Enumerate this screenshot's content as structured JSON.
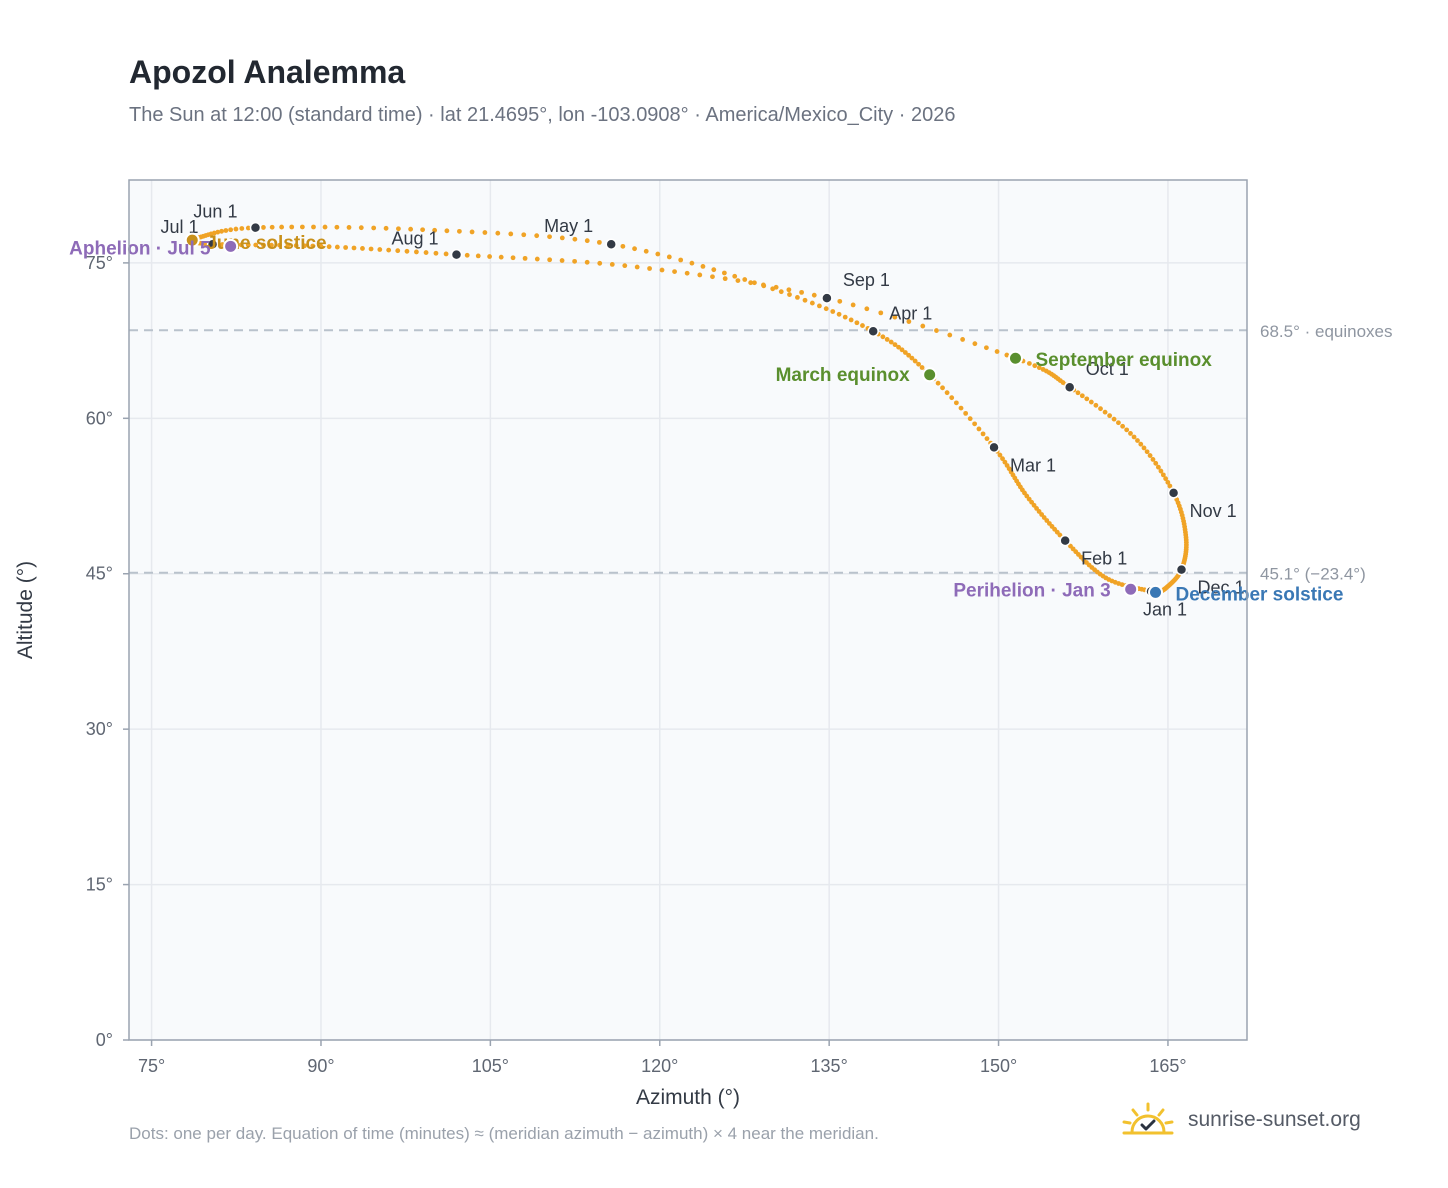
{
  "title": "Apozol Analemma",
  "subtitle": "The Sun at 12:00 (standard time) · lat 21.4695°, lon -103.0908° · America/Mexico_City · 2026",
  "footnote": "Dots: one per day. Equation of time (minutes) ≈ (meridian azimuth − azimuth) × 4 near the meridian.",
  "brand": {
    "name": "sunrise-sunset.org",
    "icon": "sun-check-icon"
  },
  "colors": {
    "curve": "#f0a326",
    "month_marker": "#333a45",
    "equinox": "#5a8f2e",
    "december_solstice": "#3a78b5",
    "june_solstice": "#c8901a",
    "apsis": "#8e6bb8",
    "ref_line": "#b9c2cc",
    "plot_bg": "#f8fafc",
    "grid": "#e6e9ee",
    "axis_frame": "#9aa3b0"
  },
  "chart_data": {
    "type": "scatter",
    "xlabel": "Azimuth (°)",
    "ylabel": "Altitude (°)",
    "xlim": [
      73,
      172
    ],
    "ylim": [
      0,
      83
    ],
    "x_ticks": [
      75,
      90,
      105,
      120,
      135,
      150,
      165
    ],
    "x_tick_labels": [
      "75°",
      "90°",
      "105°",
      "120°",
      "135°",
      "150°",
      "165°"
    ],
    "y_ticks": [
      0,
      15,
      30,
      45,
      60,
      75
    ],
    "y_tick_labels": [
      "0°",
      "15°",
      "30°",
      "45°",
      "60°",
      "75°"
    ],
    "grid": true,
    "series": [
      {
        "name": "",
        "kind": "daily-dots",
        "points": [
          {
            "date": "2026-01-01",
            "x": 163.5,
            "y": 43.3
          },
          {
            "date": "2026-01-15",
            "x": 159.5,
            "y": 44.6
          },
          {
            "date": "2026-02-01",
            "x": 155.9,
            "y": 48.2
          },
          {
            "date": "2026-02-15",
            "x": 152.5,
            "y": 52.5
          },
          {
            "date": "2026-03-01",
            "x": 149.6,
            "y": 57.2
          },
          {
            "date": "2026-03-20",
            "x": 143.9,
            "y": 64.2
          },
          {
            "date": "2026-04-01",
            "x": 138.9,
            "y": 68.4
          },
          {
            "date": "2026-04-15",
            "x": 130.0,
            "y": 72.5
          },
          {
            "date": "2026-05-01",
            "x": 115.7,
            "y": 76.8
          },
          {
            "date": "2026-05-15",
            "x": 99.0,
            "y": 78.2
          },
          {
            "date": "2026-06-01",
            "x": 84.2,
            "y": 78.4
          },
          {
            "date": "2026-06-15",
            "x": 79.0,
            "y": 77.4
          },
          {
            "date": "2026-06-21",
            "x": 78.6,
            "y": 77.2
          },
          {
            "date": "2026-07-01",
            "x": 80.4,
            "y": 76.8
          },
          {
            "date": "2026-07-15",
            "x": 90.0,
            "y": 76.6
          },
          {
            "date": "2026-08-01",
            "x": 102.0,
            "y": 75.8
          },
          {
            "date": "2026-08-15",
            "x": 118.0,
            "y": 74.6
          },
          {
            "date": "2026-09-01",
            "x": 134.8,
            "y": 71.6
          },
          {
            "date": "2026-09-23",
            "x": 151.5,
            "y": 65.8
          },
          {
            "date": "2026-10-01",
            "x": 156.3,
            "y": 63.0
          },
          {
            "date": "2026-10-15",
            "x": 162.0,
            "y": 58.2
          },
          {
            "date": "2026-11-01",
            "x": 165.5,
            "y": 52.8
          },
          {
            "date": "2026-11-15",
            "x": 166.6,
            "y": 48.5
          },
          {
            "date": "2026-12-01",
            "x": 166.2,
            "y": 45.4
          },
          {
            "date": "2026-12-15",
            "x": 164.8,
            "y": 43.6
          },
          {
            "date": "2026-12-21",
            "x": 163.9,
            "y": 43.2
          }
        ]
      }
    ],
    "month_markers": [
      {
        "label": "Jan 1",
        "x": 163.5,
        "y": 43.3
      },
      {
        "label": "Feb 1",
        "x": 155.9,
        "y": 48.2
      },
      {
        "label": "Mar 1",
        "x": 149.6,
        "y": 57.2
      },
      {
        "label": "Apr 1",
        "x": 138.9,
        "y": 68.4
      },
      {
        "label": "May 1",
        "x": 115.7,
        "y": 76.8
      },
      {
        "label": "Jun 1",
        "x": 84.2,
        "y": 78.4
      },
      {
        "label": "Jul 1",
        "x": 80.4,
        "y": 76.8
      },
      {
        "label": "Aug 1",
        "x": 102.0,
        "y": 75.8
      },
      {
        "label": "Sep 1",
        "x": 134.8,
        "y": 71.6
      },
      {
        "label": "Oct 1",
        "x": 156.3,
        "y": 63.0
      },
      {
        "label": "Nov 1",
        "x": 165.5,
        "y": 52.8
      },
      {
        "label": "Dec 1",
        "x": 166.2,
        "y": 45.4
      }
    ],
    "events": [
      {
        "label": "March equinox",
        "x": 143.9,
        "y": 64.2,
        "color": "#5a8f2e"
      },
      {
        "label": "September equinox",
        "x": 151.5,
        "y": 65.8,
        "color": "#5a8f2e"
      },
      {
        "label": "December solstice",
        "x": 163.9,
        "y": 43.2,
        "color": "#3a78b5"
      },
      {
        "label": "June solstice",
        "x": 78.6,
        "y": 77.2,
        "color": "#c8901a"
      },
      {
        "label": "Perihelion · Jan 3",
        "x": 161.7,
        "y": 43.5,
        "color": "#8e6bb8"
      },
      {
        "label": "Aphelion · Jul 5",
        "x": 82.0,
        "y": 76.6,
        "color": "#8e6bb8"
      }
    ],
    "reference_lines": [
      {
        "y": 68.5,
        "label": "68.5° · equinoxes"
      },
      {
        "y": 45.1,
        "label": "45.1° (−23.4°)"
      }
    ]
  }
}
